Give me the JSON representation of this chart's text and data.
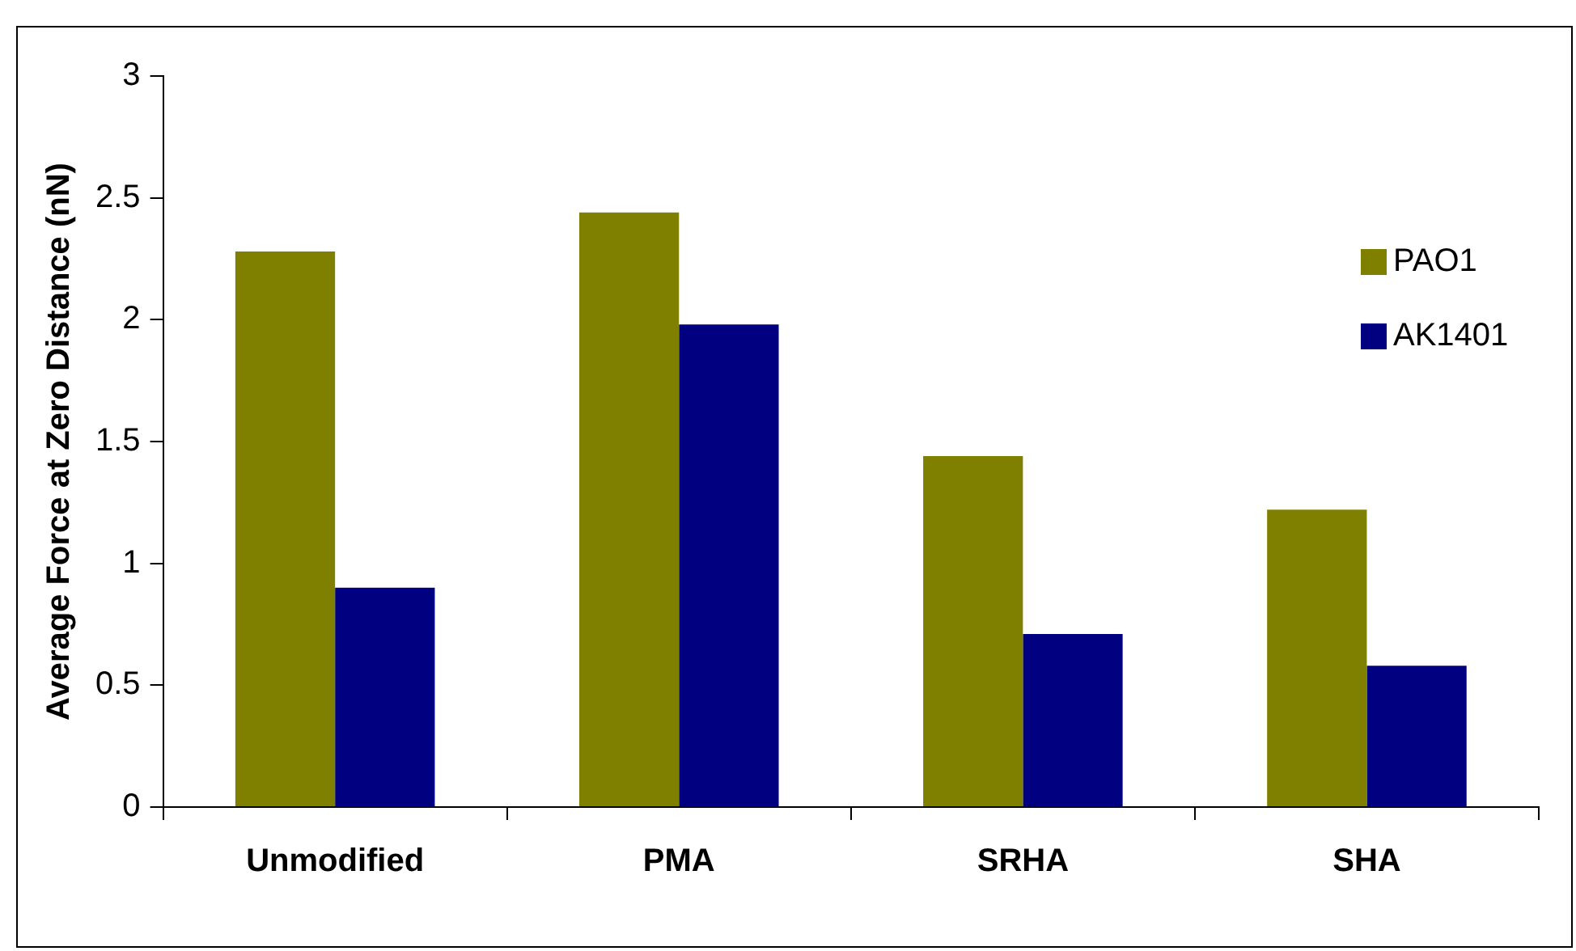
{
  "chart_data": {
    "type": "bar",
    "ylabel": "Average Force at Zero Distance (nN)",
    "categories": [
      "Unmodified",
      "PMA",
      "SRHA",
      "SHA"
    ],
    "series": [
      {
        "name": "PAO1",
        "color": "#808000",
        "values": [
          2.28,
          2.44,
          1.44,
          1.22
        ]
      },
      {
        "name": "AK1401",
        "color": "#000080",
        "values": [
          0.9,
          1.98,
          0.71,
          0.58
        ]
      }
    ],
    "ylim": [
      0,
      3
    ],
    "yticks": [
      0,
      0.5,
      1,
      1.5,
      2,
      2.5,
      3
    ],
    "grid": false,
    "legend": "right"
  }
}
